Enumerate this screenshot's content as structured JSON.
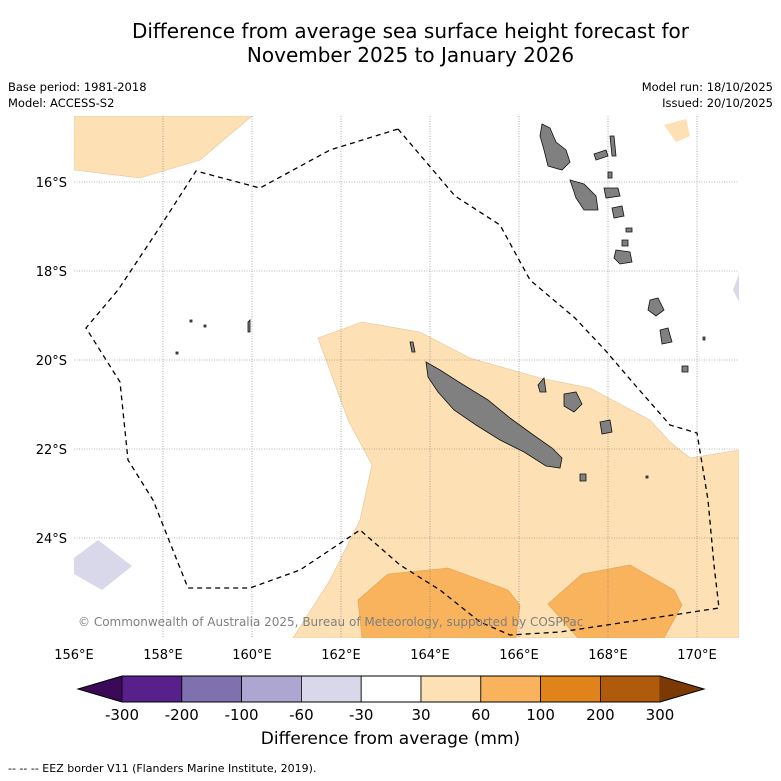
{
  "title": {
    "line1": "Difference from average sea surface height forecast for",
    "line2": "November 2025 to January 2026"
  },
  "meta": {
    "base_period": "Base period: 1981-2018",
    "model": "Model: ACCESS-S2",
    "model_run": "Model run: 18/10/2025",
    "issued": "Issued: 20/10/2025"
  },
  "map": {
    "lat_labels": [
      "16°S",
      "18°S",
      "20°S",
      "22°S",
      "24°S"
    ],
    "lon_labels": [
      "156°E",
      "158°E",
      "160°E",
      "162°E",
      "164°E",
      "166°E",
      "168°E",
      "170°E"
    ],
    "copyright": "© Commonwealth of Australia 2025, Bureau of Meteorology, supported by COSPPac",
    "colors": {
      "land": "#808080",
      "light_orange": "#fde0b4",
      "mid_orange": "#f9b35d",
      "light_purple": "#d8d8ea",
      "gridline": "#777777"
    }
  },
  "legend": {
    "ticks": [
      "-300",
      "-200",
      "-100",
      "-60",
      "-30",
      "30",
      "60",
      "100",
      "200",
      "300"
    ],
    "colors": [
      "#3a0a59",
      "#58208a",
      "#7f71ad",
      "#aca6d0",
      "#d8d8ea",
      "#ffffff",
      "#fde0b4",
      "#f9b35d",
      "#e0831a",
      "#b05a0c",
      "#7b3a04"
    ],
    "label": "Difference from average (mm)"
  },
  "footer": "--  --  -- EEZ border V11 (Flanders Marine Institute, 2019)."
}
